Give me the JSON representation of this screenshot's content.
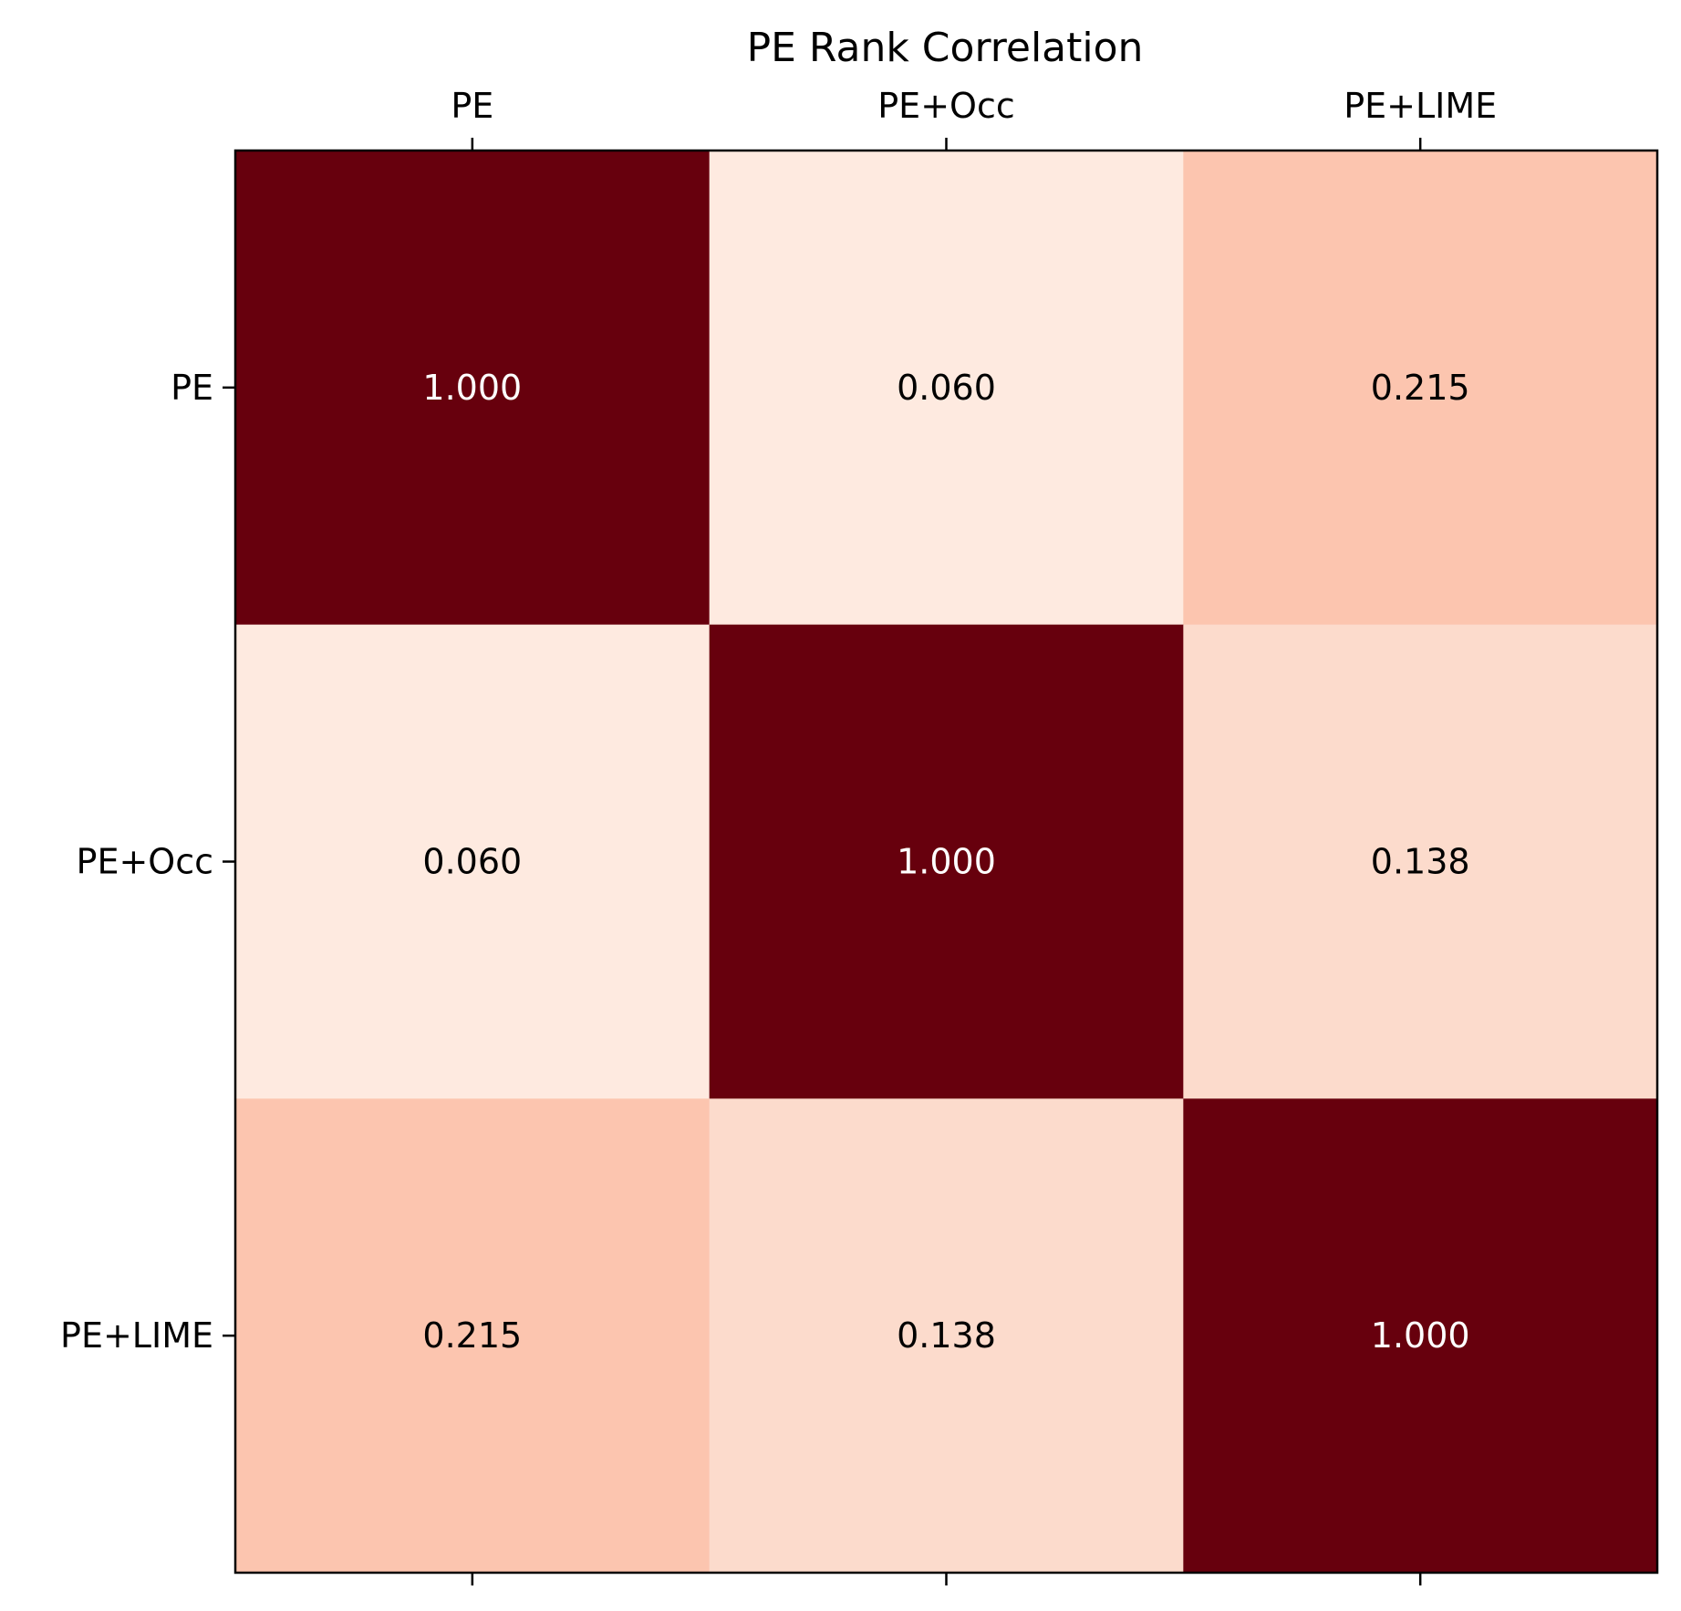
{
  "chart_data": {
    "type": "heatmap",
    "title": "PE Rank Correlation",
    "xlabel": "",
    "ylabel": "",
    "x_categories": [
      "PE",
      "PE+Occ",
      "PE+LIME"
    ],
    "y_categories": [
      "PE",
      "PE+Occ",
      "PE+LIME"
    ],
    "values": [
      [
        1.0,
        0.06,
        0.215
      ],
      [
        0.06,
        1.0,
        0.138
      ],
      [
        0.215,
        0.138,
        1.0
      ]
    ],
    "value_labels": [
      [
        "1.000",
        "0.060",
        "0.215"
      ],
      [
        "0.060",
        "1.000",
        "0.138"
      ],
      [
        "0.215",
        "0.138",
        "1.000"
      ]
    ],
    "colormap": "Reds",
    "color_range": [
      0,
      1
    ],
    "colors": {
      "dark": "#67000d",
      "high": "#fcc5af",
      "mid": "#fcdbcc",
      "low": "#feeae0",
      "text_light": "#ffffff",
      "text_dark": "#000000"
    },
    "x_tick_position": "top",
    "grid": false,
    "colorbar": false
  }
}
